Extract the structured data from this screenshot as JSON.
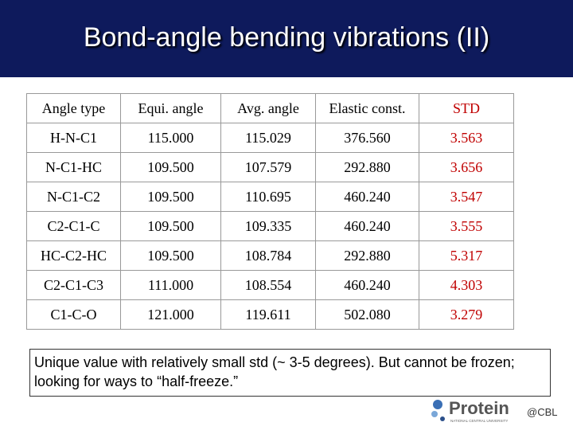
{
  "header": {
    "title": "Bond-angle bending vibrations (II)"
  },
  "table": {
    "columns": [
      "Angle type",
      "Equi. angle",
      "Avg. angle",
      "Elastic const.",
      "STD"
    ],
    "rows": [
      [
        "H-N-C1",
        "115.000",
        "115.029",
        "376.560",
        "3.563"
      ],
      [
        "N-C1-HC",
        "109.500",
        "107.579",
        "292.880",
        "3.656"
      ],
      [
        "N-C1-C2",
        "109.500",
        "110.695",
        "460.240",
        "3.547"
      ],
      [
        "C2-C1-C",
        "109.500",
        "109.335",
        "460.240",
        "3.555"
      ],
      [
        "HC-C2-HC",
        "109.500",
        "108.784",
        "292.880",
        "5.317"
      ],
      [
        "C2-C1-C3",
        "111.000",
        "108.554",
        "460.240",
        "4.303"
      ],
      [
        "C1-C-O",
        "121.000",
        "119.611",
        "502.080",
        "3.279"
      ]
    ]
  },
  "note": "Unique value with relatively small std (~ 3-5 degrees).  But cannot be frozen; looking for ways to “half-freeze.”",
  "logo": {
    "name": "Protein",
    "suffix": "@CBL",
    "subtitle": "NATIONAL CENTRAL UNIVERSITY"
  }
}
